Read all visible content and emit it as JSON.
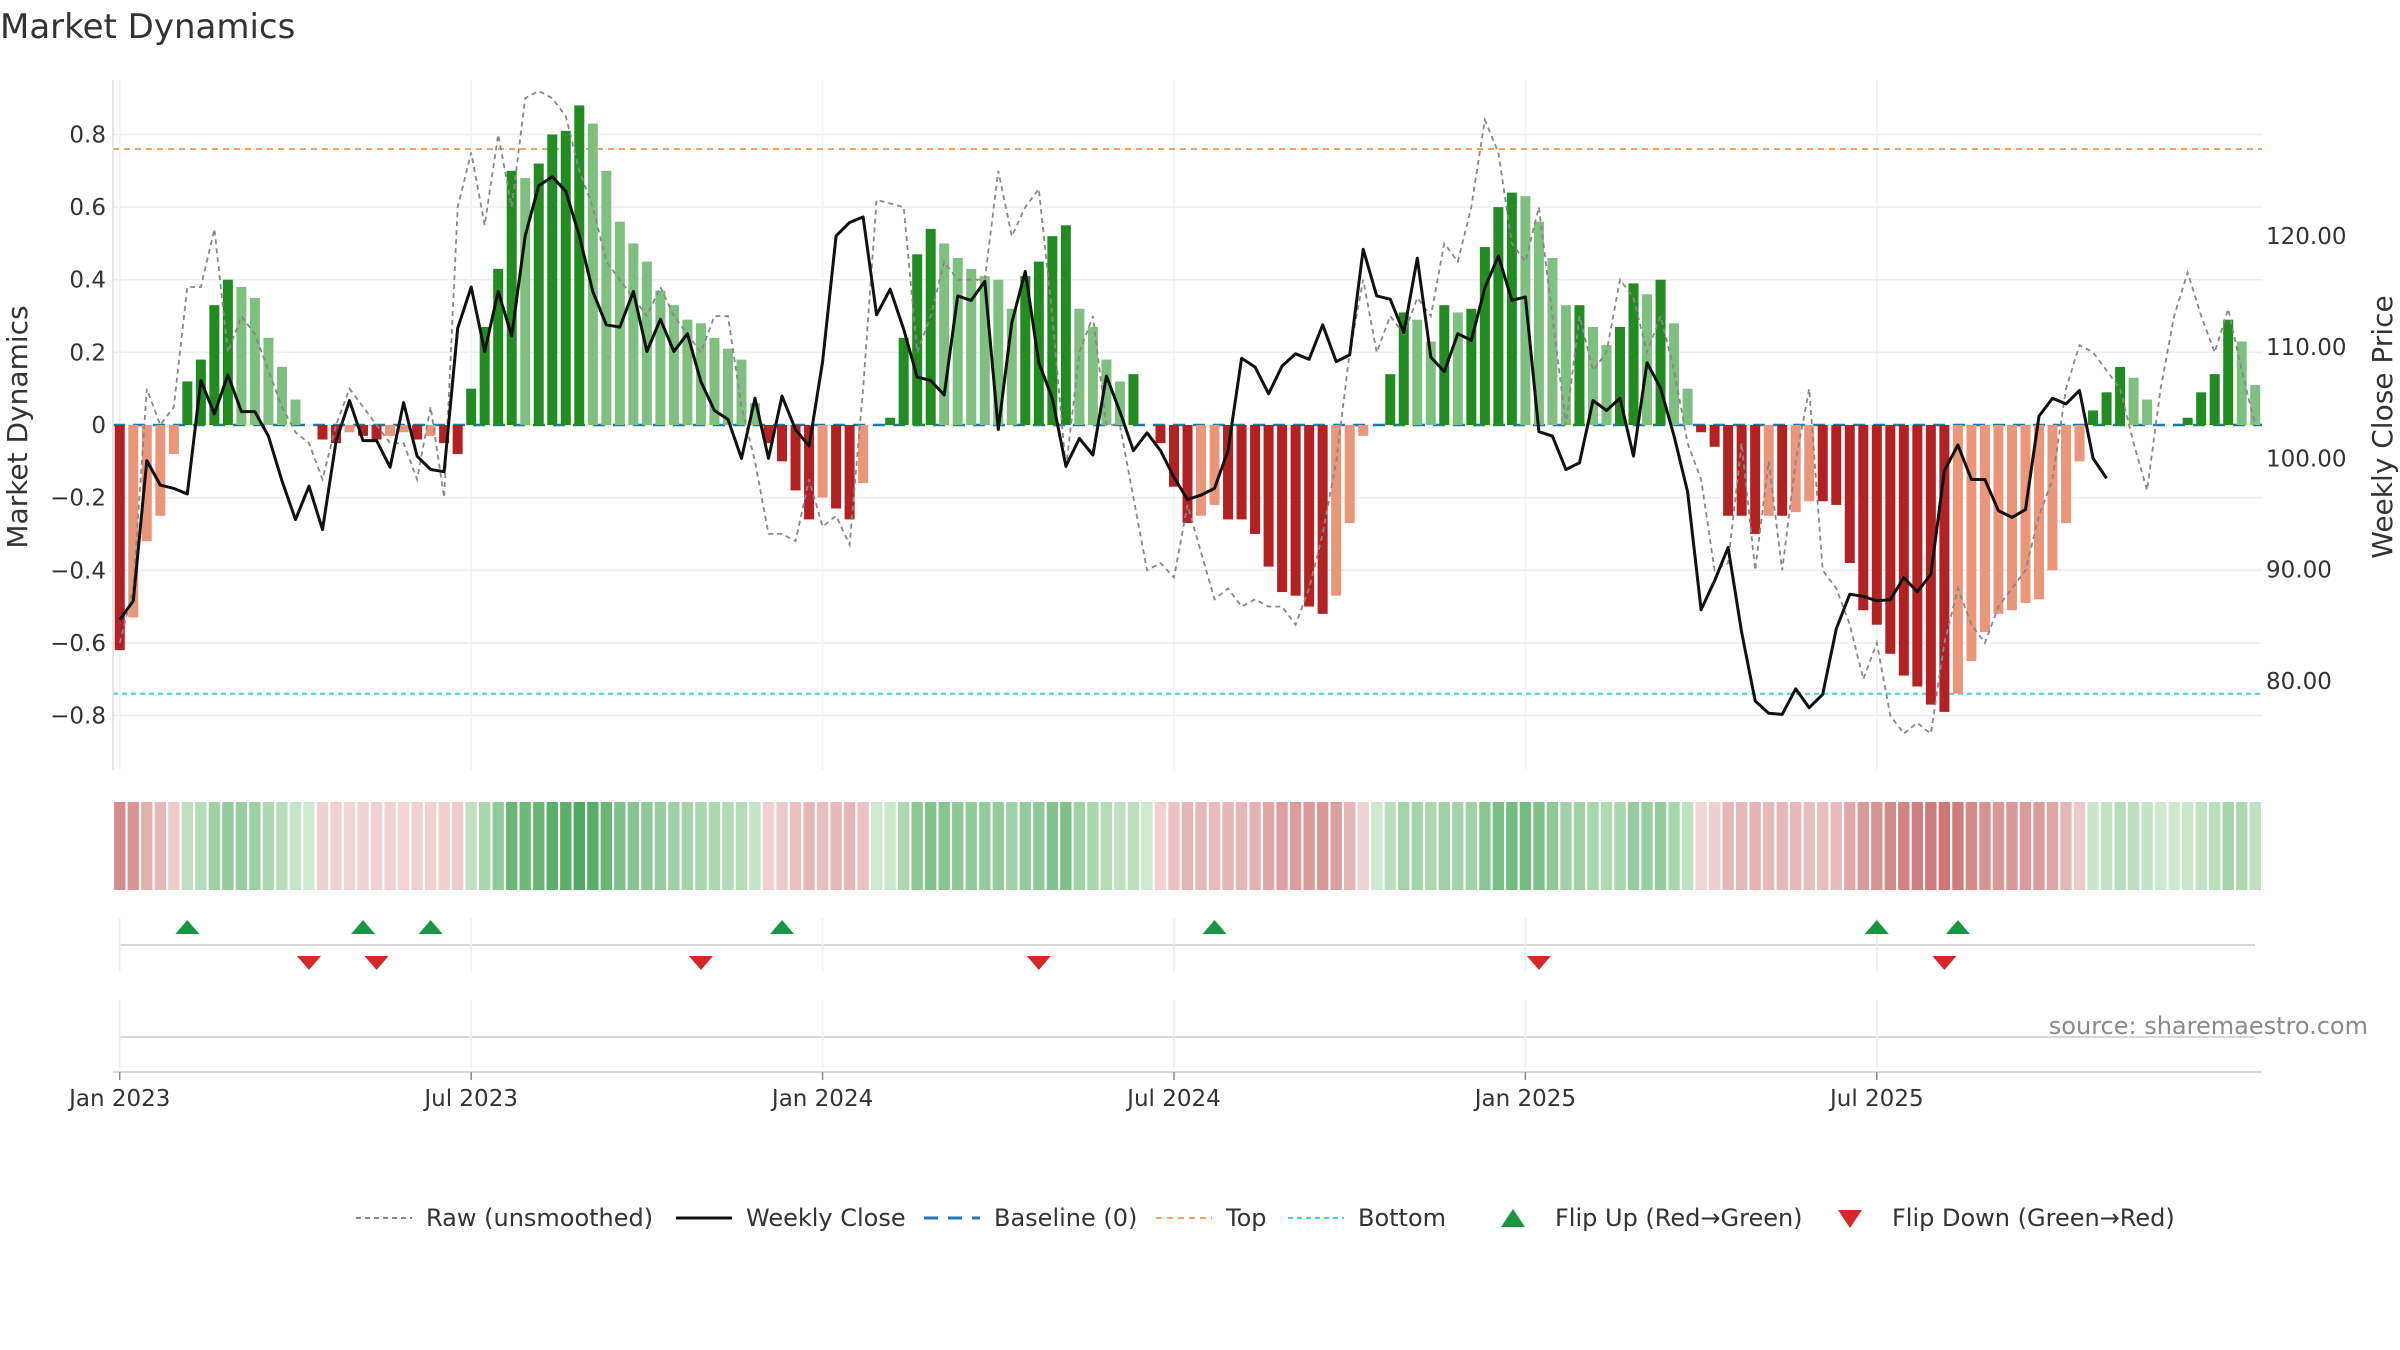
{
  "chart_data": {
    "type": "bar",
    "title": "Market Dynamics",
    "ylabel_left": "Market Dynamics",
    "ylabel_right": "Weekly Close Price",
    "ylim_left": [
      -0.95,
      0.95
    ],
    "ylim_right": [
      72,
      134
    ],
    "yticks_left": [
      {
        "v": 0.8,
        "label": "0.8"
      },
      {
        "v": 0.6,
        "label": "0.6"
      },
      {
        "v": 0.4,
        "label": "0.4"
      },
      {
        "v": 0.2,
        "label": "0.2"
      },
      {
        "v": 0.0,
        "label": "0"
      },
      {
        "v": -0.2,
        "label": "−0.2"
      },
      {
        "v": -0.4,
        "label": "−0.4"
      },
      {
        "v": -0.6,
        "label": "−0.6"
      },
      {
        "v": -0.8,
        "label": "−0.8"
      }
    ],
    "yticks_right": [
      {
        "v": 120,
        "label": "120.00"
      },
      {
        "v": 110,
        "label": "110.00"
      },
      {
        "v": 100,
        "label": "100.00"
      },
      {
        "v": 90,
        "label": "90.00"
      },
      {
        "v": 80,
        "label": "80.00"
      }
    ],
    "xticks": [
      {
        "week": 0,
        "label": "Jan 2023"
      },
      {
        "week": 26,
        "label": "Jul 2023"
      },
      {
        "week": 52,
        "label": "Jan 2024"
      },
      {
        "week": 78,
        "label": "Jul 2024"
      },
      {
        "week": 104,
        "label": "Jan 2025"
      },
      {
        "week": 130,
        "label": "Jul 2025"
      }
    ],
    "top_level": 0.76,
    "bottom_level": -0.74,
    "baseline": 0,
    "smoothed": [
      -0.62,
      -0.53,
      -0.32,
      -0.25,
      -0.08,
      0.12,
      0.18,
      0.33,
      0.4,
      0.38,
      0.35,
      0.24,
      0.16,
      0.07,
      0.0,
      -0.04,
      -0.05,
      -0.02,
      -0.03,
      -0.04,
      -0.03,
      -0.02,
      -0.04,
      -0.03,
      -0.05,
      -0.08,
      0.1,
      0.27,
      0.43,
      0.7,
      0.68,
      0.72,
      0.8,
      0.81,
      0.88,
      0.83,
      0.7,
      0.56,
      0.5,
      0.45,
      0.37,
      0.33,
      0.29,
      0.28,
      0.24,
      0.21,
      0.18,
      0.06,
      -0.05,
      -0.1,
      -0.18,
      -0.26,
      -0.2,
      -0.23,
      -0.26,
      -0.16,
      0.0,
      0.02,
      0.24,
      0.47,
      0.54,
      0.5,
      0.46,
      0.43,
      0.41,
      0.4,
      0.32,
      0.41,
      0.45,
      0.52,
      0.55,
      0.32,
      0.27,
      0.18,
      0.12,
      0.14,
      0.0,
      -0.05,
      -0.17,
      -0.27,
      -0.25,
      -0.22,
      -0.26,
      -0.26,
      -0.3,
      -0.39,
      -0.46,
      -0.47,
      -0.5,
      -0.52,
      -0.47,
      -0.27,
      -0.03,
      0.0,
      0.14,
      0.31,
      0.29,
      0.23,
      0.33,
      0.31,
      0.32,
      0.49,
      0.6,
      0.64,
      0.63,
      0.56,
      0.46,
      0.33,
      0.33,
      0.27,
      0.22,
      0.27,
      0.39,
      0.36,
      0.4,
      0.28,
      0.1,
      -0.02,
      -0.06,
      -0.25,
      -0.25,
      -0.3,
      -0.25,
      -0.25,
      -0.24,
      -0.21,
      -0.21,
      -0.22,
      -0.38,
      -0.51,
      -0.55,
      -0.63,
      -0.69,
      -0.72,
      -0.77,
      -0.79,
      -0.74,
      -0.65,
      -0.57,
      -0.52,
      -0.51,
      -0.49,
      -0.48,
      -0.4,
      -0.27,
      -0.1,
      0.04,
      0.09,
      0.16,
      0.13,
      0.07,
      0.0,
      0.0,
      0.02,
      0.09,
      0.14,
      0.29,
      0.23,
      0.11
    ],
    "raw": [
      -0.6,
      -0.45,
      0.1,
      0.0,
      0.05,
      0.38,
      0.38,
      0.54,
      0.2,
      0.3,
      0.25,
      0.15,
      0.05,
      -0.02,
      -0.05,
      -0.15,
      0.0,
      0.1,
      0.05,
      0.0,
      -0.05,
      -0.05,
      -0.15,
      0.05,
      -0.2,
      0.6,
      0.75,
      0.55,
      0.8,
      0.6,
      0.9,
      0.92,
      0.9,
      0.85,
      0.7,
      0.6,
      0.45,
      0.4,
      0.35,
      0.3,
      0.38,
      0.3,
      0.25,
      0.2,
      0.3,
      0.3,
      0.05,
      -0.1,
      -0.3,
      -0.3,
      -0.32,
      -0.15,
      -0.28,
      -0.25,
      -0.33,
      0.1,
      0.62,
      0.61,
      0.6,
      0.2,
      0.3,
      0.45,
      0.4,
      0.4,
      0.4,
      0.7,
      0.52,
      0.6,
      0.65,
      0.3,
      -0.12,
      0.2,
      0.3,
      0.0,
      0.0,
      -0.2,
      -0.4,
      -0.38,
      -0.42,
      -0.22,
      -0.35,
      -0.48,
      -0.45,
      -0.5,
      -0.48,
      -0.5,
      -0.5,
      -0.55,
      -0.45,
      -0.3,
      -0.1,
      0.2,
      0.4,
      0.2,
      0.3,
      0.25,
      0.35,
      0.3,
      0.5,
      0.45,
      0.6,
      0.84,
      0.75,
      0.5,
      0.45,
      0.6,
      0.3,
      0.0,
      0.3,
      0.15,
      0.2,
      0.4,
      0.35,
      0.2,
      0.3,
      0.15,
      -0.05,
      -0.15,
      -0.4,
      -0.38,
      -0.05,
      -0.4,
      -0.1,
      -0.4,
      -0.1,
      0.1,
      -0.4,
      -0.45,
      -0.55,
      -0.7,
      -0.6,
      -0.8,
      -0.85,
      -0.82,
      -0.85,
      -0.6,
      -0.45,
      -0.55,
      -0.6,
      -0.5,
      -0.45,
      -0.4,
      -0.25,
      -0.15,
      0.1,
      0.22,
      0.2,
      0.15,
      0.1,
      -0.05,
      -0.18,
      0.1,
      0.3,
      0.42,
      0.3,
      0.2,
      0.32,
      0.15,
      0.0
    ],
    "weekly_close": [
      85.5,
      87.2,
      99.8,
      97.6,
      97.3,
      96.8,
      107.0,
      104.0,
      107.5,
      104.2,
      104.2,
      102.0,
      98.0,
      94.5,
      97.5,
      93.6,
      101.5,
      105.2,
      101.6,
      101.6,
      99.2,
      105.0,
      100.2,
      99.0,
      98.8,
      111.7,
      115.4,
      109.6,
      115.0,
      111.0,
      120.0,
      124.5,
      125.3,
      124.0,
      120.0,
      115.0,
      112.0,
      111.8,
      115.0,
      109.6,
      112.5,
      109.6,
      111.2,
      106.9,
      104.3,
      103.5,
      100.0,
      105.4,
      100.0,
      105.6,
      102.6,
      101.1,
      108.7,
      120.0,
      121.2,
      121.7,
      112.9,
      115.2,
      111.6,
      107.3,
      107.0,
      105.7,
      114.6,
      114.2,
      115.9,
      102.6,
      112.2,
      116.8,
      108.6,
      105.4,
      99.3,
      101.8,
      100.3,
      107.4,
      104.2,
      100.7,
      102.3,
      100.7,
      98.3,
      96.3,
      96.7,
      97.3,
      100.7,
      109.0,
      108.2,
      105.8,
      108.3,
      109.4,
      108.9,
      112.0,
      108.7,
      109.3,
      118.8,
      114.6,
      114.3,
      111.3,
      118.0,
      109.1,
      107.8,
      111.2,
      110.6,
      115.3,
      118.2,
      114.2,
      114.5,
      102.4,
      102.0,
      99.0,
      99.6,
      105.2,
      104.3,
      105.4,
      100.2,
      108.6,
      106.3,
      102.0,
      97.0,
      86.4,
      89.0,
      92.0,
      84.4,
      78.2,
      77.1,
      77.0,
      79.3,
      77.6,
      78.8,
      84.7,
      87.8,
      87.6,
      87.2,
      87.3,
      89.3,
      88.0,
      89.6,
      98.9,
      101.2,
      98.1,
      98.1,
      95.3,
      94.7,
      95.4,
      103.8,
      105.4,
      104.9,
      106.1,
      100.0,
      98.2
    ],
    "flip_up_weeks": [
      5,
      18,
      23,
      49,
      81,
      130,
      136
    ],
    "flip_down_weeks": [
      14,
      19,
      43,
      68,
      105,
      135
    ],
    "colors": {
      "strong_green": "#228b22",
      "light_green": "#7fbf7f",
      "strong_red": "#b22222",
      "light_red": "#e9967a",
      "raw_line": "#888888",
      "close_line": "#111111",
      "baseline": "#1f77b4",
      "top": "#f4a261",
      "bottom": "#48cae4",
      "flip_up": "#1a9641",
      "flip_down": "#d62728"
    },
    "legend": [
      {
        "key": "raw",
        "label": "Raw (unsmoothed)"
      },
      {
        "key": "close",
        "label": "Weekly Close"
      },
      {
        "key": "baseline",
        "label": "Baseline (0)"
      },
      {
        "key": "top",
        "label": "Top"
      },
      {
        "key": "bottom",
        "label": "Bottom"
      },
      {
        "key": "flip_up",
        "label": "Flip Up (Red→Green)"
      },
      {
        "key": "flip_down",
        "label": "Flip Down (Green→Red)"
      }
    ],
    "source": "source: sharemaestro.com"
  }
}
